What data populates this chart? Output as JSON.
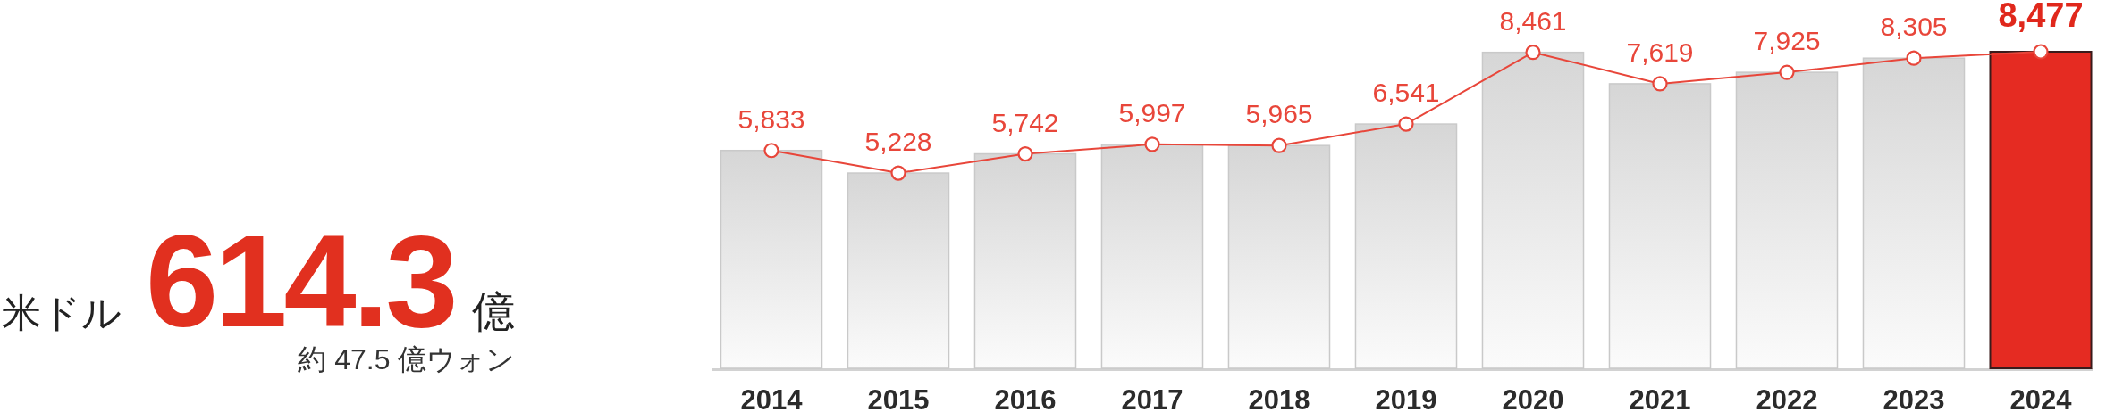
{
  "chart_data": [
    {
      "type": "other",
      "annotations": [
        "米ドル",
        "614.3",
        "億",
        "約 47.5 億ウォン"
      ]
    },
    {
      "type": "bar",
      "categories": [
        "2014",
        "2015",
        "2016",
        "2017",
        "2018",
        "2019",
        "2020",
        "2021",
        "2022",
        "2023",
        "2024"
      ],
      "tick_labels": "x",
      "series": [
        {
          "type": "bar",
          "colors": [
            "#d6d6d6",
            "#d6d6d6",
            "#d6d6d6",
            "#d6d6d6",
            "#d6d6d6",
            "#d6d6d6",
            "#d6d6d6",
            "#d6d6d6",
            "#d6d6d6",
            "#d6d6d6",
            "#e52b22"
          ],
          "values": [
            5833,
            5228,
            5742,
            5997,
            5965,
            6541,
            8461,
            7619,
            7925,
            8305,
            8477
          ]
        },
        {
          "type": "line",
          "color": "#e8463a",
          "marker": "circle",
          "values": [
            5833,
            5228,
            5742,
            5997,
            5965,
            6541,
            8461,
            7619,
            7925,
            8305,
            8477
          ],
          "value_labels": [
            "5,833",
            "5,228",
            "5,742",
            "5,997",
            "5,965",
            "6,541",
            "8,461",
            "7,619",
            "7,925",
            "8,305",
            "8,477"
          ]
        }
      ]
    }
  ]
}
